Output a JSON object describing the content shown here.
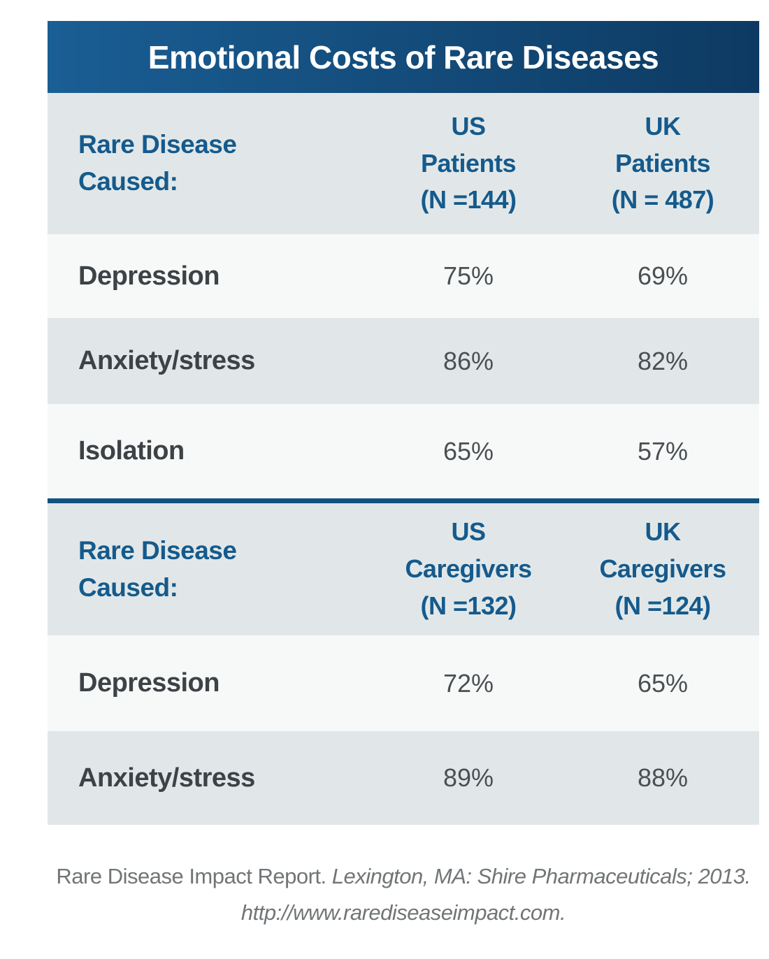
{
  "title": "Emotional Costs of Rare Diseases",
  "colors": {
    "header_gradient_left": "#1a5e94",
    "header_gradient_right": "#0d3a62",
    "heading_blue": "#155a8c",
    "row_gray": "#e1e7e8",
    "row_light": "#f7f9f9",
    "label_gray": "#3d4246",
    "value_gray": "#4b4f53",
    "divider_blue": "#12527f",
    "footer_gray": "#717577"
  },
  "sections": [
    {
      "header": {
        "label_lines": [
          "Rare Disease",
          "Caused:"
        ],
        "us_lines": [
          "US",
          "Patients",
          "(N =144)"
        ],
        "uk_lines": [
          "UK",
          "Patients",
          "(N = 487)"
        ]
      },
      "rows": [
        {
          "label": "Depression",
          "us": "75%",
          "uk": "69%"
        },
        {
          "label": "Anxiety/stress",
          "us": "86%",
          "uk": "82%"
        },
        {
          "label": "Isolation",
          "us": "65%",
          "uk": "57%"
        }
      ]
    },
    {
      "header": {
        "label_lines": [
          "Rare Disease",
          "Caused:"
        ],
        "us_lines": [
          "US",
          "Caregivers",
          "(N =132)"
        ],
        "uk_lines": [
          "UK",
          "Caregivers",
          "(N =124)"
        ]
      },
      "rows": [
        {
          "label": "Depression",
          "us": "72%",
          "uk": "65%"
        },
        {
          "label": "Anxiety/stress",
          "us": "89%",
          "uk": "88%"
        }
      ]
    }
  ],
  "footer": {
    "line1_roman": "Rare Disease Impact Report. ",
    "line1_italic": "Lexington, MA: Shire Pharmaceuticals; 2013.",
    "line2_italic": "http://www.rarediseaseimpact.com."
  },
  "chart_data": [
    {
      "type": "table",
      "title": "Emotional Costs of Rare Diseases",
      "columns": [
        "Rare Disease Caused:",
        "US Patients (N =144)",
        "UK Patients (N = 487)"
      ],
      "rows": [
        [
          "Depression",
          "75%",
          "69%"
        ],
        [
          "Anxiety/stress",
          "86%",
          "82%"
        ],
        [
          "Isolation",
          "65%",
          "57%"
        ]
      ]
    },
    {
      "type": "table",
      "title": "Emotional Costs of Rare Diseases",
      "columns": [
        "Rare Disease Caused:",
        "US Caregivers (N =132)",
        "UK Caregivers (N =124)"
      ],
      "rows": [
        [
          "Depression",
          "72%",
          "65%"
        ],
        [
          "Anxiety/stress",
          "89%",
          "88%"
        ]
      ]
    }
  ]
}
